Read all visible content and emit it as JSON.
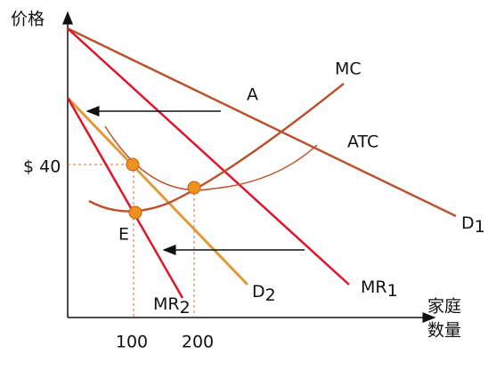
{
  "axes": {
    "y_label": "价格",
    "x_label_line1": "家庭",
    "x_label_line2": "数量"
  },
  "ticks": {
    "y": "$ 40",
    "x": [
      "100",
      "200"
    ]
  },
  "labels": {
    "A": "A",
    "E": "E",
    "MC": "MC",
    "ATC": "ATC",
    "D1": {
      "text": "D",
      "sub": "1"
    },
    "MR1": {
      "text": "MR",
      "sub": "1"
    },
    "D2": {
      "text": "D",
      "sub": "2"
    },
    "MR2": {
      "text": "MR",
      "sub": "2"
    }
  }
}
